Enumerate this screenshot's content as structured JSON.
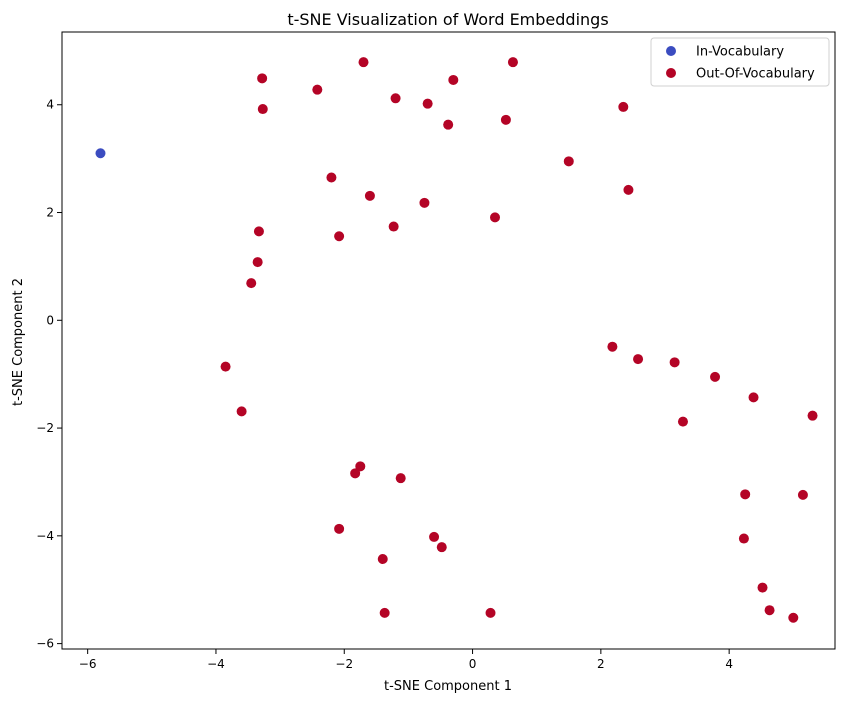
{
  "chart_data": {
    "type": "scatter",
    "title": "t-SNE Visualization of Word Embeddings",
    "xlabel": "t-SNE Component 1",
    "ylabel": "t-SNE Component 2",
    "xlim": [
      -6.4,
      5.65
    ],
    "ylim": [
      -6.1,
      5.35
    ],
    "xticks": [
      -6,
      -4,
      -2,
      0,
      2,
      4
    ],
    "yticks": [
      -6,
      -4,
      -2,
      0,
      2,
      4
    ],
    "xtick_labels": [
      "−6",
      "−4",
      "−2",
      "0",
      "2",
      "4"
    ],
    "ytick_labels": [
      "−6",
      "−4",
      "−2",
      "0",
      "2",
      "4"
    ],
    "grid": false,
    "legend_position": "top-right",
    "series": [
      {
        "name": "In-Vocabulary",
        "color": "#3b4cc0",
        "points": [
          [
            -5.8,
            3.1
          ]
        ]
      },
      {
        "name": "Out-Of-Vocabulary",
        "color": "#b40426",
        "points": [
          [
            -3.28,
            4.49
          ],
          [
            -1.7,
            4.79
          ],
          [
            -2.42,
            4.28
          ],
          [
            -1.2,
            4.12
          ],
          [
            -0.3,
            4.46
          ],
          [
            0.63,
            4.79
          ],
          [
            -3.27,
            3.92
          ],
          [
            -0.7,
            4.02
          ],
          [
            -0.38,
            3.63
          ],
          [
            0.52,
            3.72
          ],
          [
            2.35,
            3.96
          ],
          [
            1.5,
            2.95
          ],
          [
            -2.2,
            2.65
          ],
          [
            -1.6,
            2.31
          ],
          [
            -0.75,
            2.18
          ],
          [
            0.35,
            1.91
          ],
          [
            2.43,
            2.42
          ],
          [
            -3.33,
            1.65
          ],
          [
            -2.08,
            1.56
          ],
          [
            -1.23,
            1.74
          ],
          [
            -3.35,
            1.08
          ],
          [
            -3.45,
            0.69
          ],
          [
            2.18,
            -0.49
          ],
          [
            2.58,
            -0.72
          ],
          [
            3.15,
            -0.78
          ],
          [
            -3.85,
            -0.86
          ],
          [
            3.78,
            -1.05
          ],
          [
            -3.6,
            -1.69
          ],
          [
            4.38,
            -1.43
          ],
          [
            5.3,
            -1.77
          ],
          [
            3.28,
            -1.88
          ],
          [
            -1.75,
            -2.71
          ],
          [
            -1.83,
            -2.84
          ],
          [
            -1.12,
            -2.93
          ],
          [
            4.25,
            -3.23
          ],
          [
            5.15,
            -3.24
          ],
          [
            -2.08,
            -3.87
          ],
          [
            -0.6,
            -4.02
          ],
          [
            4.23,
            -4.05
          ],
          [
            -0.48,
            -4.21
          ],
          [
            -1.4,
            -4.43
          ],
          [
            4.52,
            -4.96
          ],
          [
            4.63,
            -5.38
          ],
          [
            -1.37,
            -5.43
          ],
          [
            0.28,
            -5.43
          ],
          [
            5.0,
            -5.52
          ]
        ]
      }
    ]
  }
}
